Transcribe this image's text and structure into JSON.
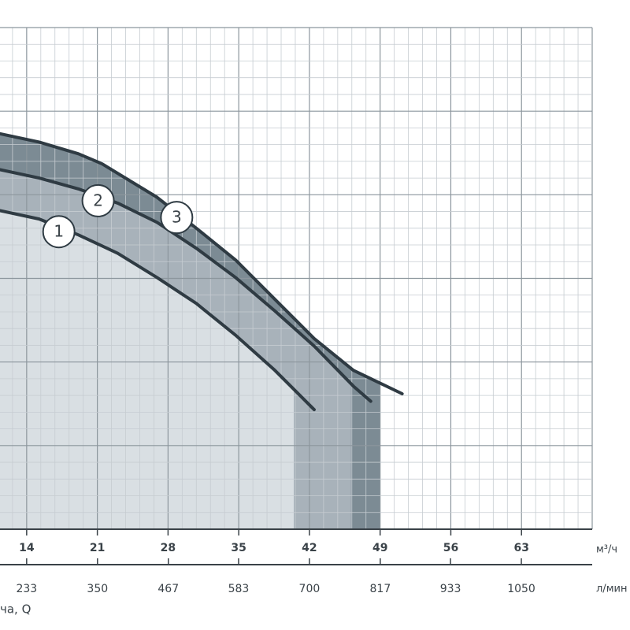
{
  "chart_data": {
    "type": "line",
    "x_label": "ча, Q",
    "x_unit": "м³/ч",
    "x2_unit": "л/мин",
    "xlim": [
      11.36,
      70
    ],
    "xticks": [
      14,
      21,
      28,
      35,
      42,
      49,
      56,
      63
    ],
    "x2lim": [
      189,
      1167
    ],
    "x2ticks": [
      233,
      350,
      467,
      583,
      700,
      817,
      933,
      1050
    ],
    "ylim": [
      0,
      6
    ],
    "grid": {
      "x_major_step": 7,
      "y_major_step": 1,
      "minor_divisions": 5
    },
    "line_color": "#2f3b43",
    "series": [
      {
        "name": "1",
        "color": "#d9dfe3",
        "range_end": 40.45,
        "x": [
          11.36,
          15.24,
          19.13,
          23.02,
          26.91,
          30.8,
          34.69,
          38.58,
          42.47
        ],
        "values": [
          3.81,
          3.71,
          3.52,
          3.3,
          3.01,
          2.7,
          2.32,
          1.9,
          1.43
        ]
      },
      {
        "name": "2",
        "color": "#a8b2ba",
        "range_end": 46.12,
        "x": [
          11.36,
          15.24,
          19.13,
          23.02,
          26.91,
          30.8,
          34.69,
          38.58,
          42.47,
          46.36,
          48.07
        ],
        "values": [
          4.3,
          4.2,
          4.07,
          3.9,
          3.67,
          3.36,
          3.01,
          2.61,
          2.19,
          1.71,
          1.53
        ]
      },
      {
        "name": "3",
        "color": "#7c8b94",
        "range_end": 49.0,
        "x": [
          11.36,
          15.24,
          19.13,
          21.47,
          26.91,
          30.8,
          34.69,
          38.58,
          42.47,
          46.36,
          51.18
        ],
        "values": [
          4.73,
          4.63,
          4.49,
          4.37,
          3.97,
          3.6,
          3.22,
          2.75,
          2.28,
          1.9,
          1.62
        ]
      }
    ]
  }
}
